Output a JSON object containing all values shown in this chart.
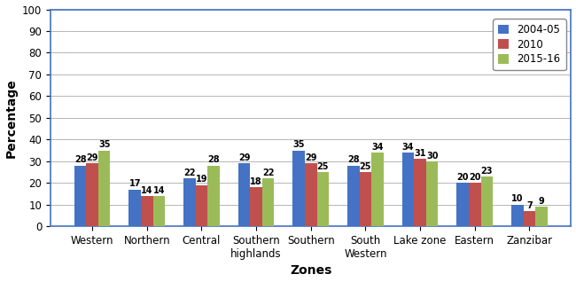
{
  "categories": [
    "Western",
    "Northern",
    "Central",
    "Southern\nhighlands",
    "Southern",
    "South\nWestern",
    "Lake zone",
    "Eastern",
    "Zanzibar"
  ],
  "series": {
    "2004-05": [
      28,
      17,
      22,
      29,
      35,
      28,
      34,
      20,
      10
    ],
    "2010": [
      29,
      14,
      19,
      18,
      29,
      25,
      31,
      20,
      7
    ],
    "2015-16": [
      35,
      14,
      28,
      22,
      25,
      34,
      30,
      23,
      9
    ]
  },
  "colors": {
    "2004-05": "#4472C4",
    "2010": "#C0504D",
    "2015-16": "#9BBB59"
  },
  "ylabel": "Percentage",
  "xlabel": "Zones",
  "ylim": [
    0,
    100
  ],
  "yticks": [
    0,
    10,
    20,
    30,
    40,
    50,
    60,
    70,
    80,
    90,
    100
  ],
  "bar_width": 0.22,
  "legend_labels": [
    "2004-05",
    "2010",
    "2015-16"
  ],
  "annotation_fontsize": 7,
  "axis_label_fontsize": 10,
  "tick_fontsize": 8.5,
  "legend_fontsize": 8.5
}
